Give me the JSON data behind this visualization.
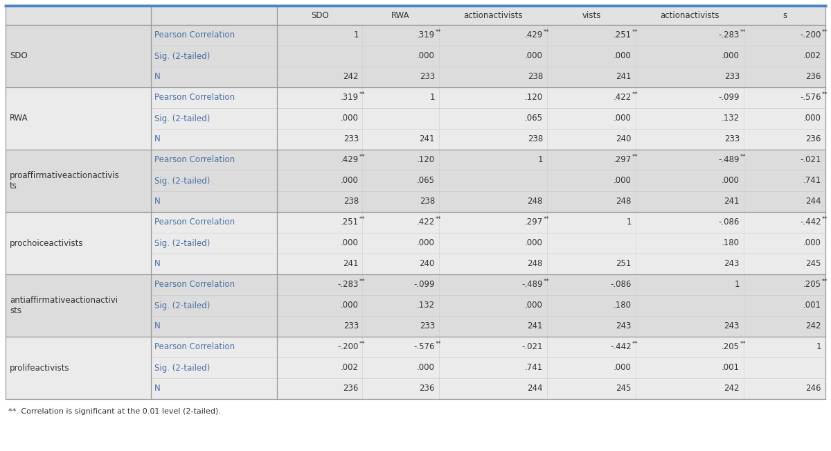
{
  "col_headers": [
    "SDO",
    "RWA",
    "actionactivists",
    "vists",
    "actionactivists",
    "s"
  ],
  "row_groups": [
    {
      "group_label": "SDO",
      "rows": [
        {
          "label": "Pearson Correlation",
          "values": [
            "1",
            ".319**",
            ".429**",
            ".251**",
            "-.283**",
            "-.200**"
          ]
        },
        {
          "label": "Sig. (2-tailed)",
          "values": [
            "",
            ".000",
            ".000",
            ".000",
            ".000",
            ".002"
          ]
        },
        {
          "label": "N",
          "values": [
            "242",
            "233",
            "238",
            "241",
            "233",
            "236"
          ]
        }
      ]
    },
    {
      "group_label": "RWA",
      "rows": [
        {
          "label": "Pearson Correlation",
          "values": [
            ".319**",
            "1",
            ".120",
            ".422**",
            "-.099",
            "-.576**"
          ]
        },
        {
          "label": "Sig. (2-tailed)",
          "values": [
            ".000",
            "",
            ".065",
            ".000",
            ".132",
            ".000"
          ]
        },
        {
          "label": "N",
          "values": [
            "233",
            "241",
            "238",
            "240",
            "233",
            "236"
          ]
        }
      ]
    },
    {
      "group_label": "proaffirmativeactionactivis\nts",
      "rows": [
        {
          "label": "Pearson Correlation",
          "values": [
            ".429**",
            ".120",
            "1",
            ".297**",
            "-.489**",
            "-.021"
          ]
        },
        {
          "label": "Sig. (2-tailed)",
          "values": [
            ".000",
            ".065",
            "",
            ".000",
            ".000",
            ".741"
          ]
        },
        {
          "label": "N",
          "values": [
            "238",
            "238",
            "248",
            "248",
            "241",
            "244"
          ]
        }
      ]
    },
    {
      "group_label": "prochoiceactivists",
      "rows": [
        {
          "label": "Pearson Correlation",
          "values": [
            ".251**",
            ".422**",
            ".297**",
            "1",
            "-.086",
            "-.442**"
          ]
        },
        {
          "label": "Sig. (2-tailed)",
          "values": [
            ".000",
            ".000",
            ".000",
            "",
            ".180",
            ".000"
          ]
        },
        {
          "label": "N",
          "values": [
            "241",
            "240",
            "248",
            "251",
            "243",
            "245"
          ]
        }
      ]
    },
    {
      "group_label": "antiaffirmativeactionactivi\nsts",
      "rows": [
        {
          "label": "Pearson Correlation",
          "values": [
            "-.283**",
            "-.099",
            "-.489**",
            "-.086",
            "1",
            ".205**"
          ]
        },
        {
          "label": "Sig. (2-tailed)",
          "values": [
            ".000",
            ".132",
            ".000",
            ".180",
            "",
            ".001"
          ]
        },
        {
          "label": "N",
          "values": [
            "233",
            "233",
            "241",
            "243",
            "243",
            "242"
          ]
        }
      ]
    },
    {
      "group_label": "prolifeactivists",
      "rows": [
        {
          "label": "Pearson Correlation",
          "values": [
            "-.200**",
            "-.576**",
            "-.021",
            "-.442**",
            ".205**",
            "1"
          ]
        },
        {
          "label": "Sig. (2-tailed)",
          "values": [
            ".002",
            ".000",
            ".741",
            ".000",
            ".001",
            ""
          ]
        },
        {
          "label": "N",
          "values": [
            "236",
            "236",
            "244",
            "245",
            "242",
            "246"
          ]
        }
      ]
    }
  ],
  "footnote": "**. Correlation is significant at the 0.01 level (2-tailed).",
  "header_bg": "#e2e2e2",
  "group_bg": "#d8d8d8",
  "row_bg_light": "#f0f0f0",
  "row_bg_white": "#ffffff",
  "top_border_color": "#4a86c8",
  "inner_border_color": "#cccccc",
  "outer_border_color": "#999999",
  "text_dark": "#333333",
  "text_blue": "#4a6fa5",
  "header_font_size": 8.5,
  "cell_font_size": 8.5,
  "label_font_size": 8.5,
  "group_font_size": 8.5,
  "footnote_font_size": 8.0
}
